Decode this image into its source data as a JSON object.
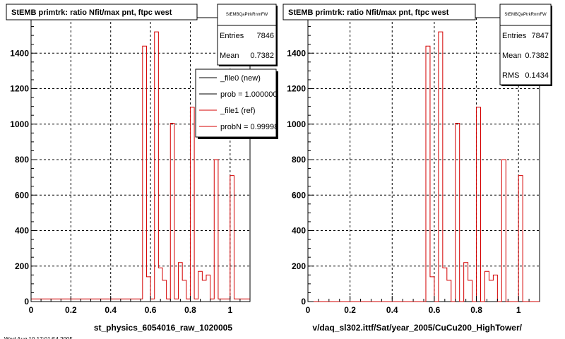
{
  "chart_data": [
    {
      "type": "bar",
      "title": "StEMB primtrk: ratio Nfit/max pnt, ftpc west",
      "xlabel": "st_physics_6054016_raw_1020005",
      "ylabel": "",
      "xlim": [
        0,
        1.1
      ],
      "ylim": [
        0,
        1600
      ],
      "grid": true,
      "x_ticks": [
        "0",
        "0.2",
        "0.4",
        "0.6",
        "0.8",
        "1"
      ],
      "y_ticks": [
        "0",
        "200",
        "400",
        "600",
        "800",
        "1000",
        "1200",
        "1400"
      ],
      "bin_width": 0.02,
      "bin_edges_start": 0.0,
      "values": [
        15,
        15,
        15,
        15,
        15,
        15,
        15,
        15,
        15,
        15,
        15,
        15,
        15,
        15,
        15,
        15,
        15,
        15,
        15,
        15,
        15,
        15,
        15,
        15,
        15,
        15,
        15,
        15,
        1440,
        140,
        15,
        1520,
        190,
        120,
        15,
        1005,
        15,
        220,
        120,
        15,
        1095,
        15,
        170,
        120,
        150,
        15,
        800,
        15,
        15,
        15,
        710,
        15,
        15,
        15,
        15
      ],
      "line_color": "#d40000",
      "stats": {
        "name": "StEMBQaPtrkRnmFW",
        "rows": [
          {
            "label": "Entries",
            "value": "7846"
          },
          {
            "label": "Mean",
            "value": "0.7382"
          }
        ]
      },
      "legend": {
        "position": "top-right",
        "entries": [
          {
            "label": "_file0 (new)",
            "color": "#000000"
          },
          {
            "label": "prob = 1.000000",
            "color": "#000000"
          },
          {
            "label": "_file1 (ref)",
            "color": "#d40000"
          },
          {
            "label": "probN = 0.999980",
            "color": "#d40000"
          }
        ]
      }
    },
    {
      "type": "bar",
      "title": "StEMB primtrk: ratio Nfit/max pnt, ftpc west",
      "xlabel": "v/daq_sl302.ittf/Sat/year_2005/CuCu200_HighTower/",
      "ylabel": "",
      "xlim": [
        0,
        1.1
      ],
      "ylim": [
        0,
        1600
      ],
      "grid": true,
      "x_ticks": [
        "0",
        "0.2",
        "0.4",
        "0.6",
        "0.8",
        "1"
      ],
      "y_ticks": [
        "0",
        "200",
        "400",
        "600",
        "800",
        "1000",
        "1200",
        "1400"
      ],
      "bin_width": 0.02,
      "bin_edges_start": 0.0,
      "values": [
        0,
        0,
        0,
        0,
        0,
        0,
        0,
        0,
        0,
        0,
        0,
        0,
        0,
        0,
        0,
        0,
        0,
        0,
        0,
        0,
        0,
        0,
        0,
        0,
        0,
        0,
        0,
        0,
        1440,
        140,
        0,
        1520,
        190,
        120,
        0,
        1005,
        0,
        220,
        120,
        0,
        1095,
        0,
        170,
        120,
        150,
        0,
        800,
        0,
        0,
        0,
        710,
        0,
        0,
        0,
        0
      ],
      "line_color": "#d40000",
      "stats": {
        "name": "StEMBQaPtrkRnmFW",
        "rows": [
          {
            "label": "Entries",
            "value": "7847"
          },
          {
            "label": "Mean",
            "value": "0.7382"
          },
          {
            "label": "RMS",
            "value": "0.1434"
          }
        ]
      }
    }
  ],
  "footer_text": "Wed Aug 10 17:01:54 2005"
}
